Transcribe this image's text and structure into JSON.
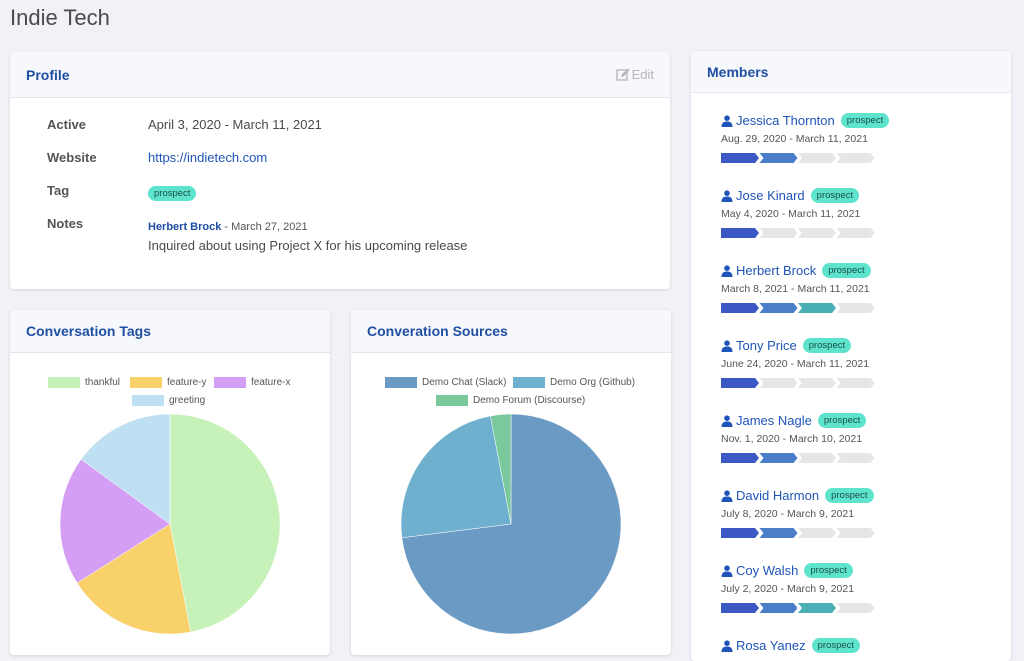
{
  "page_title": "Indie Tech",
  "profile": {
    "title": "Profile",
    "edit_label": "Edit",
    "rows": {
      "active_label": "Active",
      "active_value": "April 3, 2020 - March 11, 2021",
      "website_label": "Website",
      "website_value": "https://indietech.com",
      "tag_label": "Tag",
      "tag_value": "prospect",
      "notes_label": "Notes"
    },
    "note": {
      "author": "Herbert Brock",
      "date": " - March 27, 2021",
      "text": "Inquired about using Project X for his upcoming release"
    }
  },
  "conversation_tags": {
    "title": "Conversation Tags",
    "chart_data": {
      "type": "pie",
      "labels": [
        "thankful",
        "feature-y",
        "feature-x",
        "greeting"
      ],
      "values": [
        47,
        19,
        19,
        15
      ],
      "colors": [
        "#c6f2b9",
        "#f8d16b",
        "#d49ef5",
        "#bfe0f3"
      ]
    }
  },
  "conversation_sources": {
    "title": "Converation Sources",
    "chart_data": {
      "type": "pie",
      "labels": [
        "Demo Chat (Slack)",
        "Demo Org (Github)",
        "Demo Forum (Discourse)"
      ],
      "values": [
        73,
        24,
        3
      ],
      "colors": [
        "#6b9ac4",
        "#6fb0cf",
        "#79c99c"
      ]
    }
  },
  "members": {
    "title": "Members",
    "items": [
      {
        "name": "Jessica Thornton",
        "tag": "prospect",
        "dates": "Aug. 29, 2020 - March 11, 2021",
        "progress": [
          1,
          2,
          0,
          0
        ]
      },
      {
        "name": "Jose Kinard",
        "tag": "prospect",
        "dates": "May 4, 2020 - March 11, 2021",
        "progress": [
          1,
          0,
          0,
          0
        ]
      },
      {
        "name": "Herbert Brock",
        "tag": "prospect",
        "dates": "March 8, 2021 - March 11, 2021",
        "progress": [
          1,
          2,
          3,
          0
        ]
      },
      {
        "name": "Tony Price",
        "tag": "prospect",
        "dates": "June 24, 2020 - March 11, 2021",
        "progress": [
          1,
          0,
          0,
          0
        ]
      },
      {
        "name": "James Nagle",
        "tag": "prospect",
        "dates": "Nov. 1, 2020 - March 10, 2021",
        "progress": [
          1,
          2,
          0,
          0
        ]
      },
      {
        "name": "David Harmon",
        "tag": "prospect",
        "dates": "July 8, 2020 - March 9, 2021",
        "progress": [
          1,
          2,
          0,
          0
        ]
      },
      {
        "name": "Coy Walsh",
        "tag": "prospect",
        "dates": "July 2, 2020 - March 9, 2021",
        "progress": [
          1,
          2,
          3,
          0
        ]
      },
      {
        "name": "Rosa Yanez",
        "tag": "prospect",
        "dates": "",
        "progress": []
      }
    ],
    "progress_colors": [
      "#e6e6e9",
      "#3b58c4",
      "#4a7ec8",
      "#4bb0b5"
    ]
  }
}
